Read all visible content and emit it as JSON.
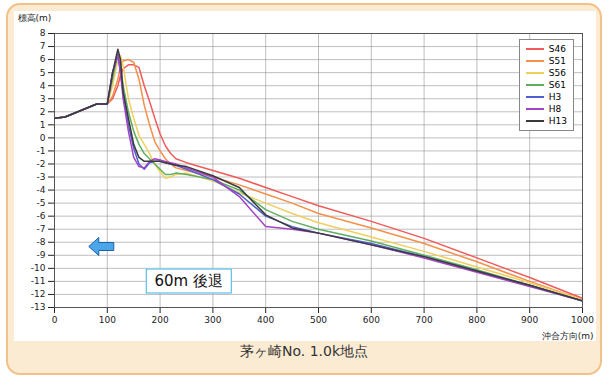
{
  "chart_data": {
    "type": "line",
    "title": "茅ヶ崎No. 1.0k地点",
    "x_label": "沖合方向(m)",
    "y_label": "標高(m)",
    "x": [
      0,
      20,
      50,
      80,
      100,
      110,
      120,
      125,
      130,
      140,
      150,
      160,
      170,
      180,
      190,
      200,
      210,
      220,
      230,
      250,
      300,
      350,
      400,
      450,
      500,
      600,
      700,
      800,
      900,
      1000
    ],
    "series": [
      {
        "name": "S46",
        "color": "#f25a5a",
        "values": [
          1.5,
          1.6,
          2.1,
          2.6,
          2.6,
          3.0,
          4.0,
          4.8,
          5.3,
          5.6,
          5.6,
          5.4,
          4.0,
          2.8,
          1.5,
          0.3,
          -0.6,
          -1.2,
          -1.6,
          -1.9,
          -2.5,
          -3.1,
          -3.8,
          -4.5,
          -5.2,
          -6.4,
          -7.7,
          -9.2,
          -10.7,
          -12.3
        ]
      },
      {
        "name": "S51",
        "color": "#f5904a",
        "values": [
          1.5,
          1.6,
          2.1,
          2.6,
          2.6,
          3.2,
          4.5,
          5.5,
          5.9,
          6.0,
          5.8,
          4.5,
          2.5,
          1.0,
          -0.3,
          -1.0,
          -1.6,
          -2.0,
          -2.3,
          -2.5,
          -3.0,
          -3.6,
          -4.3,
          -5.0,
          -5.8,
          -6.9,
          -8.1,
          -9.5,
          -11.0,
          -12.4
        ]
      },
      {
        "name": "S56",
        "color": "#f0cf5e",
        "values": [
          1.5,
          1.6,
          2.1,
          2.6,
          2.6,
          4.0,
          6.0,
          6.3,
          5.5,
          3.0,
          1.5,
          0.2,
          -0.5,
          -1.2,
          -2.0,
          -2.6,
          -3.1,
          -3.0,
          -2.8,
          -2.7,
          -3.3,
          -4.2,
          -5.0,
          -5.8,
          -6.5,
          -7.6,
          -8.7,
          -9.9,
          -11.1,
          -12.4
        ]
      },
      {
        "name": "S61",
        "color": "#5fae5f",
        "values": [
          1.5,
          1.6,
          2.1,
          2.6,
          2.6,
          4.5,
          6.5,
          5.5,
          4.0,
          2.0,
          0.5,
          -0.5,
          -1.2,
          -1.6,
          -2.0,
          -2.4,
          -2.8,
          -2.8,
          -2.7,
          -2.8,
          -3.2,
          -4.0,
          -5.5,
          -6.4,
          -7.0,
          -7.9,
          -9.0,
          -10.1,
          -11.3,
          -12.5
        ]
      },
      {
        "name": "H3",
        "color": "#4f5fcf",
        "values": [
          1.5,
          1.6,
          2.1,
          2.6,
          2.6,
          5.0,
          6.3,
          5.0,
          3.5,
          1.0,
          -0.8,
          -2.0,
          -2.4,
          -1.9,
          -1.8,
          -1.8,
          -1.9,
          -2.0,
          -2.1,
          -2.4,
          -3.2,
          -4.3,
          -6.0,
          -6.8,
          -7.3,
          -8.1,
          -9.1,
          -10.2,
          -11.3,
          -12.5
        ]
      },
      {
        "name": "H8",
        "color": "#a244c4",
        "values": [
          1.5,
          1.6,
          2.1,
          2.6,
          2.6,
          5.0,
          6.4,
          5.0,
          3.0,
          0.5,
          -1.5,
          -2.2,
          -2.3,
          -1.8,
          -1.6,
          -1.7,
          -1.8,
          -1.9,
          -2.0,
          -2.3,
          -3.0,
          -4.5,
          -6.8,
          -7.0,
          -7.3,
          -8.2,
          -9.2,
          -10.3,
          -11.4,
          -12.5
        ]
      },
      {
        "name": "H13",
        "color": "#3a3a3a",
        "values": [
          1.5,
          1.6,
          2.1,
          2.6,
          2.6,
          5.0,
          6.8,
          6.0,
          3.5,
          1.5,
          -0.5,
          -1.5,
          -1.8,
          -1.8,
          -1.8,
          -1.8,
          -1.9,
          -2.0,
          -2.1,
          -2.2,
          -2.9,
          -3.8,
          -5.9,
          -6.9,
          -7.3,
          -8.2,
          -9.1,
          -10.2,
          -11.3,
          -12.5
        ]
      }
    ],
    "xlim": [
      0,
      1000
    ],
    "xticks": [
      0,
      100,
      200,
      300,
      400,
      500,
      600,
      700,
      800,
      900,
      1000
    ],
    "ylim": [
      -13,
      8
    ],
    "yticks": [
      -13,
      -12,
      -11,
      -10,
      -9,
      -8,
      -7,
      -6,
      -5,
      -4,
      -3,
      -2,
      -1,
      0,
      1,
      2,
      3,
      4,
      5,
      6,
      7,
      8
    ],
    "grid": true,
    "legend": "upper right",
    "annotations": [
      {
        "text": "60m 後退",
        "x": 255,
        "y": -11
      }
    ]
  }
}
